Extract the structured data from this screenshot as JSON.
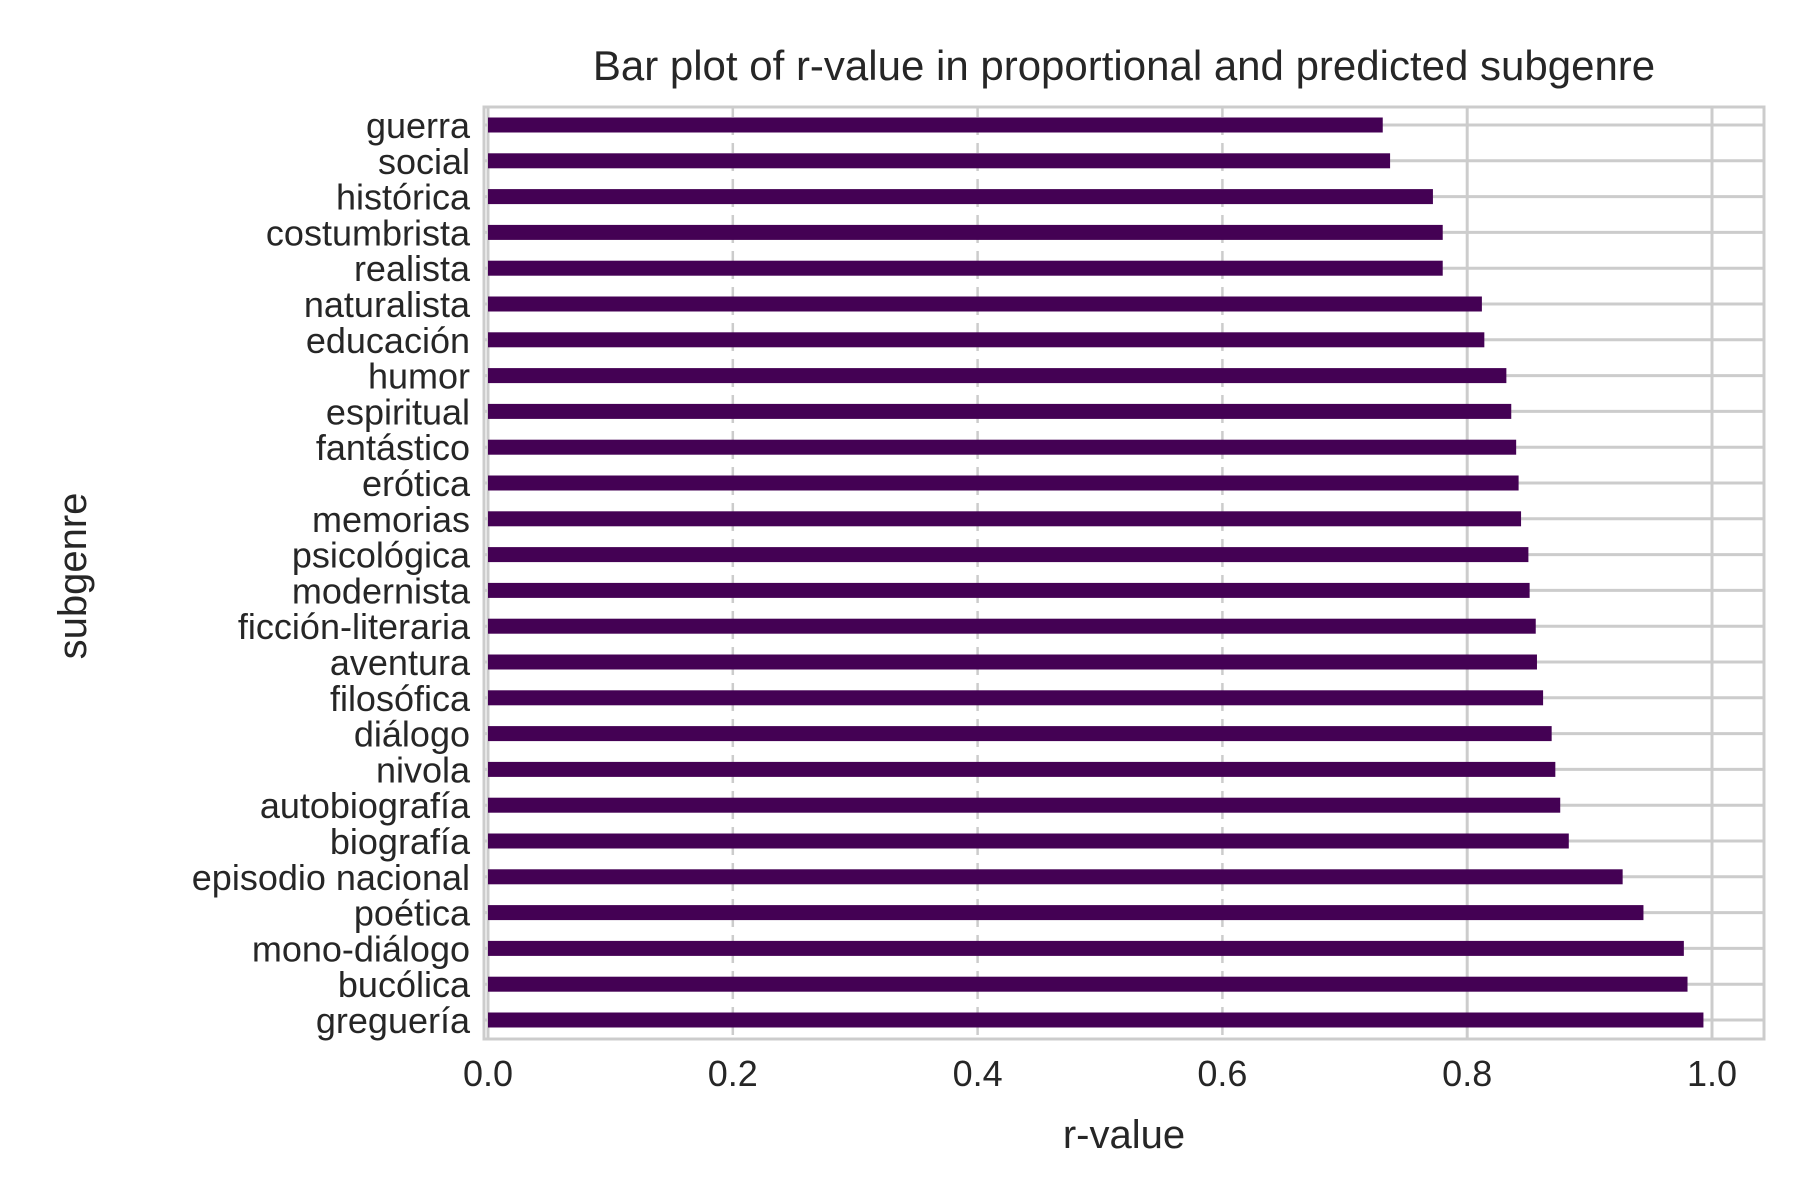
{
  "chart_data": {
    "type": "bar",
    "orientation": "horizontal",
    "title": "Bar plot of r-value in proportional and predicted subgenre",
    "xlabel": "r-value",
    "ylabel": "subgenre",
    "xlim": [
      0.0,
      1.04
    ],
    "xticks": [
      "0.0",
      "0.2",
      "0.4",
      "0.6",
      "0.8",
      "1.0"
    ],
    "grid": true,
    "bar_color": "#440154",
    "categories": [
      "guerra",
      "social",
      "histórica",
      "costumbrista",
      "realista",
      "naturalista",
      "educación",
      "humor",
      "espiritual",
      "fantástico",
      "erótica",
      "memorias",
      "psicológica",
      "modernista",
      "ficción-literaria",
      "aventura",
      "filosófica",
      "diálogo",
      "nivola",
      "autobiografía",
      "biografía",
      "episodio nacional",
      "poética",
      "mono-diálogo",
      "bucólica",
      "greguería"
    ],
    "values": [
      0.731,
      0.737,
      0.772,
      0.78,
      0.78,
      0.812,
      0.814,
      0.832,
      0.836,
      0.84,
      0.842,
      0.844,
      0.85,
      0.851,
      0.856,
      0.857,
      0.862,
      0.869,
      0.872,
      0.876,
      0.883,
      0.927,
      0.944,
      0.977,
      0.98,
      0.993
    ]
  }
}
